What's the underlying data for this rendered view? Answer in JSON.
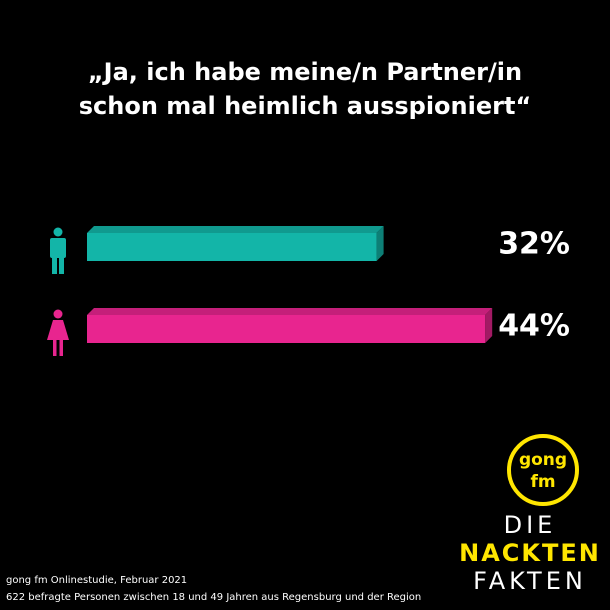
{
  "chart_data": {
    "type": "bar",
    "title": [
      "„Ja, ich habe meine/n Partner/in",
      "schon mal heimlich ausspioniert“"
    ],
    "categories": [
      null,
      null
    ],
    "values": [
      32,
      44
    ],
    "value_labels": [
      "32%",
      "44%"
    ],
    "colors": [
      "#13b5a8",
      "#e8258f"
    ],
    "source": [
      "gong fm Onlinestudie, Februar 2021",
      "622 befragte Personen zwischen 18 und 49 Jahren aus Regensburg und der Region"
    ],
    "logo": {
      "top": [
        "gong",
        "fm"
      ],
      "bottom": [
        "DIE",
        "NACKTEN",
        "FAKTEN"
      ]
    }
  }
}
